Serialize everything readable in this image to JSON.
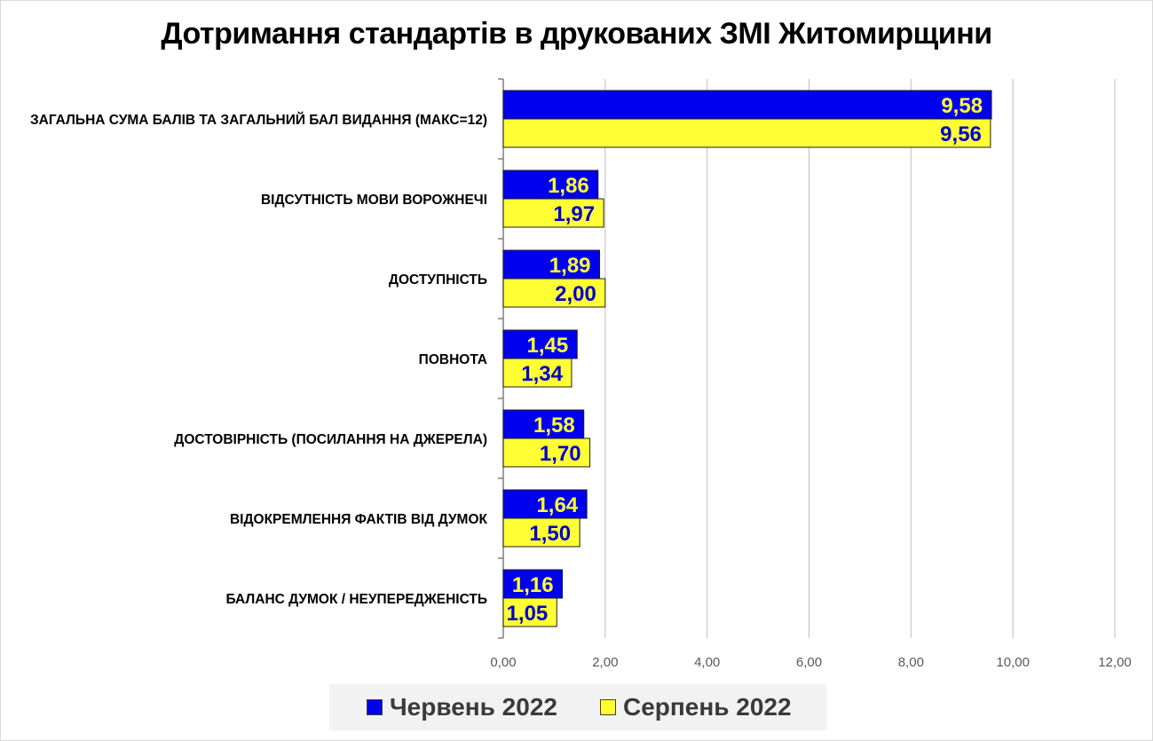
{
  "chart_data": {
    "type": "bar",
    "orientation": "horizontal",
    "title": "Дотримання стандартів в друкованих ЗМІ Житомирщини",
    "categories": [
      "ЗАГАЛЬНА СУМА БАЛІВ ТА ЗАГАЛЬНИЙ БАЛ ВИДАННЯ (МАКС=12)",
      "ВІДСУТНІСТЬ МОВИ ВОРОЖНЕЧІ",
      "ДОСТУПНІСТЬ",
      "ПОВНОТА",
      "ДОСТОВІРНІСТЬ (ПОСИЛАННЯ НА ДЖЕРЕЛА)",
      "ВІДОКРЕМЛЕННЯ ФАКТІВ ВІД ДУМОК",
      "БАЛАНС ДУМОК / НЕУПЕРЕДЖЕНІСТЬ"
    ],
    "series": [
      {
        "name": "Червень 2022",
        "color": "#0000ee",
        "label_color": "#ffff33",
        "values": [
          9.58,
          1.86,
          1.89,
          1.45,
          1.58,
          1.64,
          1.16
        ],
        "labels": [
          "9,58",
          "1,86",
          "1,89",
          "1,45",
          "1,58",
          "1,64",
          "1,16"
        ]
      },
      {
        "name": "Серпень 2022",
        "color": "#ffff33",
        "label_color": "#0000cc",
        "values": [
          9.56,
          1.97,
          2.0,
          1.34,
          1.7,
          1.5,
          1.05
        ],
        "labels": [
          "9,56",
          "1,97",
          "2,00",
          "1,34",
          "1,70",
          "1,50",
          "1,05"
        ]
      }
    ],
    "xlim": [
      0,
      12
    ],
    "xticks": [
      0,
      2,
      4,
      6,
      8,
      10,
      12
    ],
    "xtick_labels": [
      "0,00",
      "2,00",
      "4,00",
      "6,00",
      "8,00",
      "10,00",
      "12,00"
    ],
    "grid": true,
    "legend_position": "bottom"
  }
}
